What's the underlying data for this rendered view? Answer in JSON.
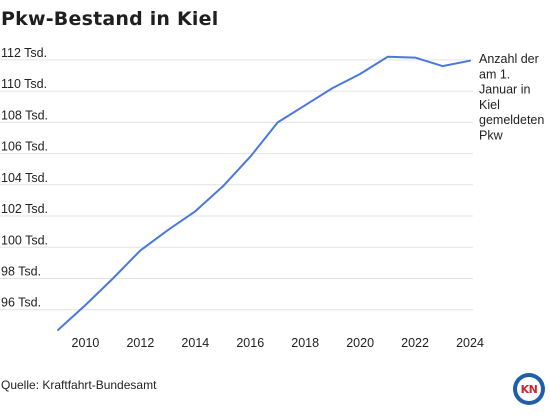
{
  "title": "Pkw-Bestand in Kiel",
  "source": "Quelle: Kraftfahrt-Bundesamt",
  "logo": "KN",
  "chart_data": {
    "type": "line",
    "title": "Pkw-Bestand in Kiel",
    "xlabel": "",
    "ylabel": "",
    "x": [
      2009,
      2010,
      2011,
      2012,
      2013,
      2014,
      2015,
      2016,
      2017,
      2018,
      2019,
      2020,
      2021,
      2022,
      2023,
      2024
    ],
    "series": [
      {
        "name": "Anzahl der am 1. Januar in Kiel gemeldeten Pkw",
        "name_lines": [
          "Anzahl der",
          "am 1.",
          "Januar in",
          "Kiel",
          "gemeldeten",
          "Pkw"
        ],
        "values": [
          94.7,
          96.3,
          98.0,
          99.8,
          101.1,
          102.3,
          103.9,
          105.8,
          108.0,
          109.1,
          110.2,
          111.1,
          112.2,
          112.15,
          111.6,
          111.95
        ],
        "color": "#4a78e0"
      }
    ],
    "xticks": [
      2010,
      2012,
      2014,
      2016,
      2018,
      2020,
      2022,
      2024
    ],
    "yticks": [
      96,
      98,
      100,
      102,
      104,
      106,
      108,
      110,
      112
    ],
    "ytick_labels": [
      "96 Tsd.",
      "98 Tsd.",
      "100 Tsd.",
      "102 Tsd.",
      "104 Tsd.",
      "106 Tsd.",
      "108 Tsd.",
      "110 Tsd.",
      "112 Tsd."
    ],
    "xlim": [
      2009,
      2024
    ],
    "ylim": [
      94.7,
      112.25
    ],
    "grid": "horizontal",
    "grid_color": "#e3e3e3",
    "legend": "right-label"
  }
}
